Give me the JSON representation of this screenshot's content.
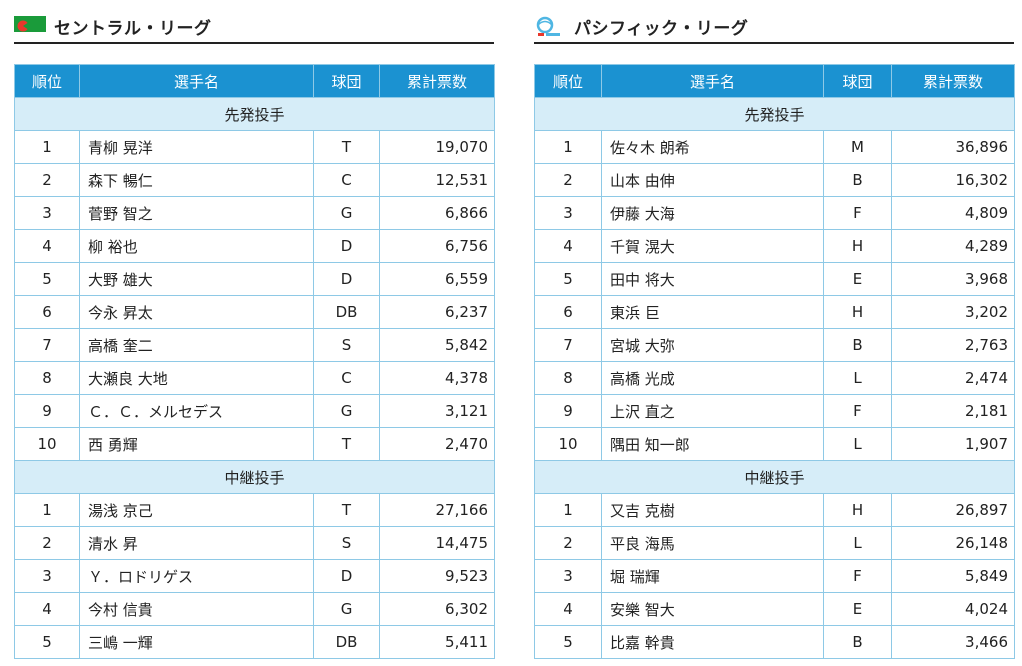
{
  "central": {
    "title": "セントラル・リーグ",
    "headers": {
      "rank": "順位",
      "player": "選手名",
      "team": "球団",
      "votes": "累計票数"
    },
    "sections": [
      {
        "title": "先発投手",
        "rows": [
          {
            "rank": "1",
            "player": "青柳 晃洋",
            "team": "T",
            "votes": "19,070"
          },
          {
            "rank": "2",
            "player": "森下 暢仁",
            "team": "C",
            "votes": "12,531"
          },
          {
            "rank": "3",
            "player": "菅野 智之",
            "team": "G",
            "votes": "6,866"
          },
          {
            "rank": "4",
            "player": "柳 裕也",
            "team": "D",
            "votes": "6,756"
          },
          {
            "rank": "5",
            "player": "大野 雄大",
            "team": "D",
            "votes": "6,559"
          },
          {
            "rank": "6",
            "player": "今永 昇太",
            "team": "DB",
            "votes": "6,237"
          },
          {
            "rank": "7",
            "player": "高橋 奎二",
            "team": "S",
            "votes": "5,842"
          },
          {
            "rank": "8",
            "player": "大瀬良 大地",
            "team": "C",
            "votes": "4,378"
          },
          {
            "rank": "9",
            "player": "Ｃ．Ｃ．メルセデス",
            "team": "G",
            "votes": "3,121"
          },
          {
            "rank": "10",
            "player": "西 勇輝",
            "team": "T",
            "votes": "2,470"
          }
        ]
      },
      {
        "title": "中継投手",
        "rows": [
          {
            "rank": "1",
            "player": "湯浅 京己",
            "team": "T",
            "votes": "27,166"
          },
          {
            "rank": "2",
            "player": "清水 昇",
            "team": "S",
            "votes": "14,475"
          },
          {
            "rank": "3",
            "player": "Ｙ．ロドリゲス",
            "team": "D",
            "votes": "9,523"
          },
          {
            "rank": "4",
            "player": "今村 信貴",
            "team": "G",
            "votes": "6,302"
          },
          {
            "rank": "5",
            "player": "三嶋 一輝",
            "team": "DB",
            "votes": "5,411"
          }
        ]
      }
    ]
  },
  "pacific": {
    "title": "パシフィック・リーグ",
    "headers": {
      "rank": "順位",
      "player": "選手名",
      "team": "球団",
      "votes": "累計票数"
    },
    "sections": [
      {
        "title": "先発投手",
        "rows": [
          {
            "rank": "1",
            "player": "佐々木 朗希",
            "team": "M",
            "votes": "36,896"
          },
          {
            "rank": "2",
            "player": "山本 由伸",
            "team": "B",
            "votes": "16,302"
          },
          {
            "rank": "3",
            "player": "伊藤 大海",
            "team": "F",
            "votes": "4,809"
          },
          {
            "rank": "4",
            "player": "千賀 滉大",
            "team": "H",
            "votes": "4,289"
          },
          {
            "rank": "5",
            "player": "田中 将大",
            "team": "E",
            "votes": "3,968"
          },
          {
            "rank": "6",
            "player": "東浜 巨",
            "team": "H",
            "votes": "3,202"
          },
          {
            "rank": "7",
            "player": "宮城 大弥",
            "team": "B",
            "votes": "2,763"
          },
          {
            "rank": "8",
            "player": "高橋 光成",
            "team": "L",
            "votes": "2,474"
          },
          {
            "rank": "9",
            "player": "上沢 直之",
            "team": "F",
            "votes": "2,181"
          },
          {
            "rank": "10",
            "player": "隅田 知一郎",
            "team": "L",
            "votes": "1,907"
          }
        ]
      },
      {
        "title": "中継投手",
        "rows": [
          {
            "rank": "1",
            "player": "又吉 克樹",
            "team": "H",
            "votes": "26,897"
          },
          {
            "rank": "2",
            "player": "平良 海馬",
            "team": "L",
            "votes": "26,148"
          },
          {
            "rank": "3",
            "player": "堀 瑞輝",
            "team": "F",
            "votes": "5,849"
          },
          {
            "rank": "4",
            "player": "安樂 智大",
            "team": "E",
            "votes": "4,024"
          },
          {
            "rank": "5",
            "player": "比嘉 幹貴",
            "team": "B",
            "votes": "3,466"
          }
        ]
      }
    ]
  },
  "icons": {
    "central_logo": "central-league-logo",
    "pacific_logo": "pacific-league-logo"
  },
  "colors": {
    "header_bg": "#1b92d1",
    "section_bg": "#d6edf8",
    "border": "#8ec9e6",
    "central_green": "#1a9b3a",
    "central_red": "#e8382c",
    "pacific_blue": "#4fb6e3"
  }
}
